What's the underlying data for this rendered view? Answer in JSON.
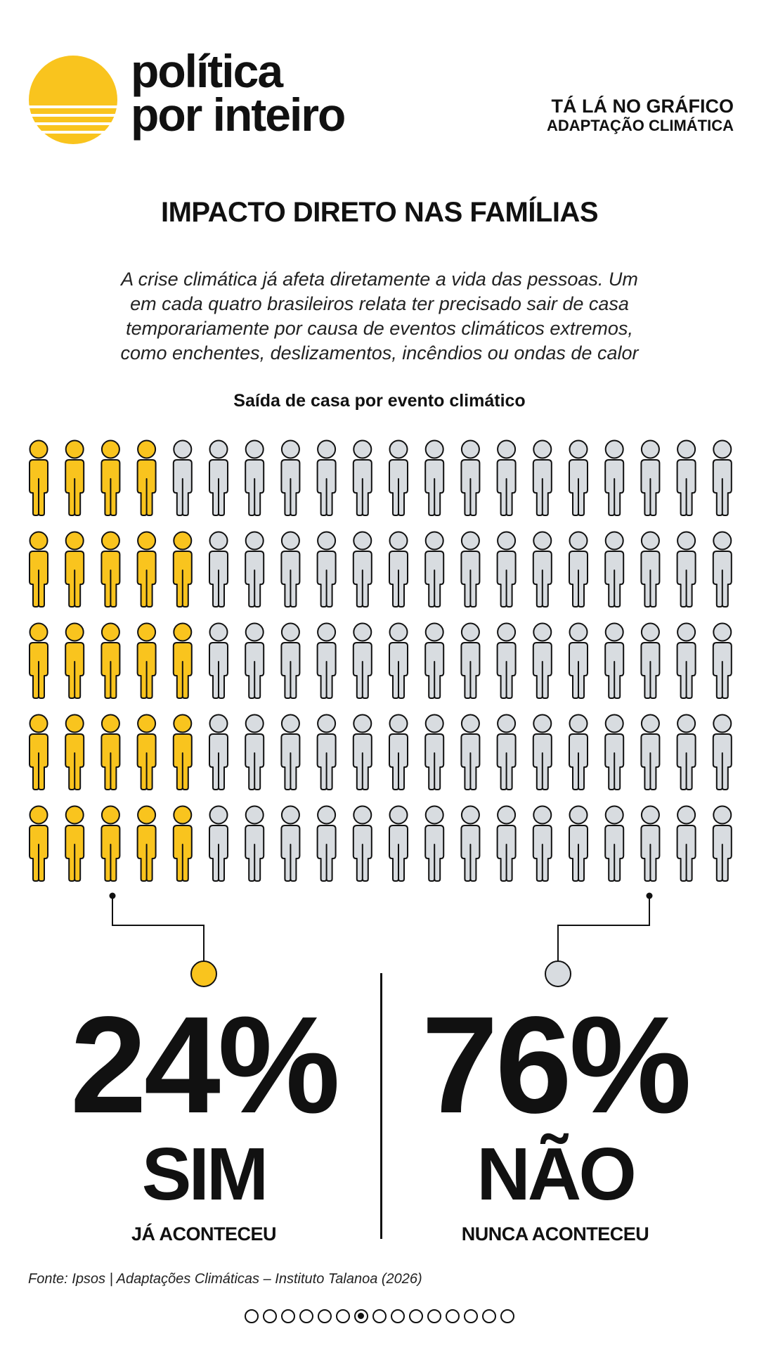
{
  "header": {
    "brand_line1": "política",
    "brand_line2": "por inteiro",
    "kicker_line1": "TÁ LÁ NO GRÁFICO",
    "kicker_line2": "ADAPTAÇÃO CLIMÁTICA",
    "logo_color": "#F9C41E"
  },
  "title": "IMPACTO DIRETO NAS FAMÍLIAS",
  "lead_lines": [
    "A crise climática já afeta diretamente a vida das pessoas. Um",
    "em cada quatro brasileiros relata ter precisado sair de casa",
    "temporariamente por causa de eventos climáticos extremos,",
    "como enchentes, deslizamentos, incêndios ou ondas de calor"
  ],
  "chart_data": {
    "type": "pictogram",
    "title": "Saída de casa por evento climático",
    "total": 100,
    "rows": 5,
    "columns": 20,
    "series": [
      {
        "name": "SIM",
        "label": "JÁ ACONTECEU",
        "value": 24,
        "display": "24%",
        "color": "#F9C41E"
      },
      {
        "name": "NÃO",
        "label": "NUNCA ACONTECEU",
        "value": 76,
        "display": "76%",
        "color": "#D8DCE0"
      }
    ]
  },
  "source": "Fonte: Ipsos | Adaptações Climáticas – Instituto Talanoa (2026)",
  "pagination": {
    "total": 15,
    "current": 7
  }
}
